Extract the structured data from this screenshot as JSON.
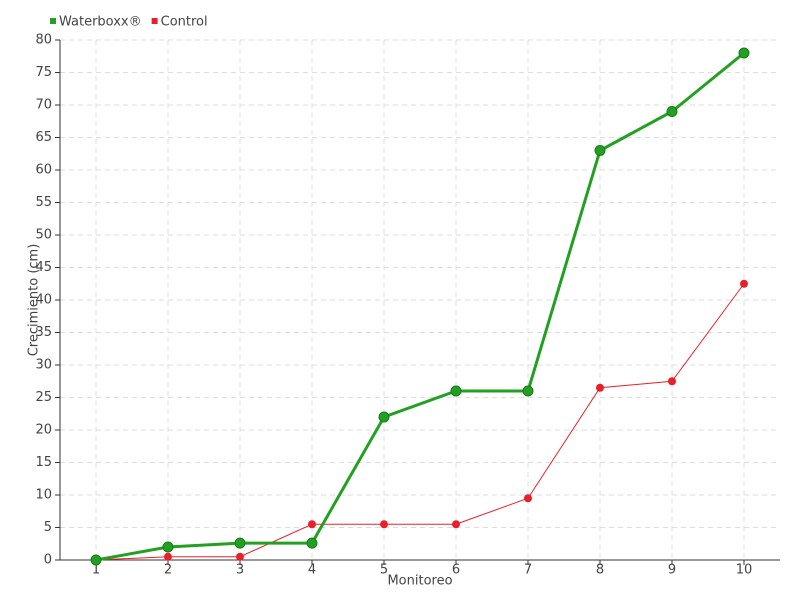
{
  "chart_data": {
    "type": "line",
    "x_label": "Monitoreo",
    "y_label": "Crecimiento (cm)",
    "categories": [
      "1",
      "2",
      "3",
      "4",
      "5",
      "6",
      "7",
      "8",
      "9",
      "10"
    ],
    "series": [
      {
        "name": "Waterboxx®",
        "color": "#22a022",
        "values": [
          0,
          2,
          2.6,
          2.6,
          22,
          26,
          26,
          63,
          69,
          78
        ]
      },
      {
        "name": "Control",
        "color": "#e8202a",
        "values": [
          0,
          0.5,
          0.5,
          5.5,
          5.5,
          5.5,
          9.5,
          26.5,
          27.5,
          42.5
        ]
      }
    ],
    "ylim": [
      0,
      80
    ],
    "yticks": [
      0,
      5,
      10,
      15,
      20,
      25,
      30,
      35,
      40,
      45,
      50,
      55,
      60,
      65,
      70,
      75,
      80
    ],
    "grid": true,
    "legend": "top-left"
  }
}
